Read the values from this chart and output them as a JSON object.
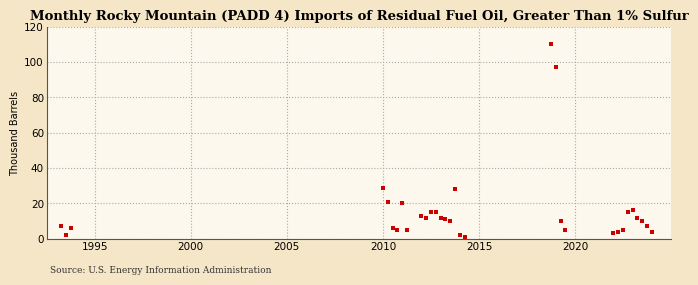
{
  "title": "Monthly Rocky Mountain (PADD 4) Imports of Residual Fuel Oil, Greater Than 1% Sulfur",
  "ylabel": "Thousand Barrels",
  "source": "Source: U.S. Energy Information Administration",
  "fig_bg_color": "#f5e6c8",
  "plot_bg_color": "#fdf8ee",
  "marker_color": "#cc0000",
  "grid_color": "#aaaaaa",
  "xlim": [
    1992.5,
    2025
  ],
  "ylim": [
    0,
    120
  ],
  "yticks": [
    0,
    20,
    40,
    60,
    80,
    100,
    120
  ],
  "xticks": [
    1995,
    2000,
    2005,
    2010,
    2015,
    2020
  ],
  "data_points": [
    [
      1993.25,
      7
    ],
    [
      1993.5,
      2
    ],
    [
      1993.75,
      6
    ],
    [
      2010.0,
      29
    ],
    [
      2010.25,
      21
    ],
    [
      2010.5,
      6
    ],
    [
      2010.75,
      5
    ],
    [
      2011.0,
      20
    ],
    [
      2011.25,
      5
    ],
    [
      2012.0,
      13
    ],
    [
      2012.25,
      12
    ],
    [
      2012.5,
      15
    ],
    [
      2012.75,
      15
    ],
    [
      2013.0,
      12
    ],
    [
      2013.25,
      11
    ],
    [
      2013.5,
      10
    ],
    [
      2013.75,
      28
    ],
    [
      2014.0,
      2
    ],
    [
      2014.25,
      1
    ],
    [
      2018.75,
      110
    ],
    [
      2019.0,
      97
    ],
    [
      2019.25,
      10
    ],
    [
      2019.5,
      5
    ],
    [
      2022.0,
      3
    ],
    [
      2022.25,
      4
    ],
    [
      2022.5,
      5
    ],
    [
      2022.75,
      15
    ],
    [
      2023.0,
      16
    ],
    [
      2023.25,
      12
    ],
    [
      2023.5,
      10
    ],
    [
      2023.75,
      7
    ],
    [
      2024.0,
      4
    ]
  ]
}
